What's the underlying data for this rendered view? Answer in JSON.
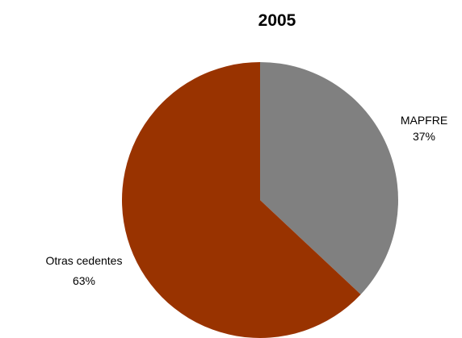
{
  "chart_data": {
    "type": "pie",
    "title": "2005",
    "slices": [
      {
        "label": "MAPFRE",
        "value": 37,
        "display": "37%",
        "color": "#808080"
      },
      {
        "label": "Otras cedentes",
        "value": 63,
        "display": "63%",
        "color": "#993300"
      }
    ],
    "start_angle_deg": 0,
    "direction": "clockwise",
    "legend": "none",
    "labels_outside": true
  }
}
